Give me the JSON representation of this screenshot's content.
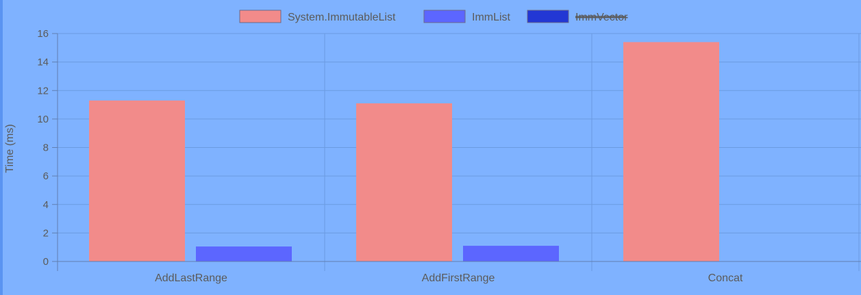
{
  "chart_data": {
    "type": "bar",
    "title": "",
    "xlabel": "",
    "ylabel": "Time (ms)",
    "ylim": [
      0,
      16
    ],
    "yticks": [
      0,
      2,
      4,
      6,
      8,
      10,
      12,
      14,
      16
    ],
    "categories": [
      "AddLastRange",
      "AddFirstRange",
      "Concat"
    ],
    "series": [
      {
        "name": "System.ImmutableList",
        "color": "#f28b8a",
        "values": [
          11.3,
          11.1,
          15.4
        ],
        "hidden": false
      },
      {
        "name": "ImmList",
        "color": "#5c66ff",
        "values": [
          1.05,
          1.1,
          null
        ],
        "hidden": false
      },
      {
        "name": "ImmVector",
        "color": "#2337d4",
        "values": [
          null,
          null,
          null
        ],
        "hidden": true
      }
    ],
    "legend": "top-center",
    "grid": true
  },
  "colors": {
    "background": "#7fb2ff",
    "grid": "#6b9be0",
    "axis": "#607fb0",
    "text": "#5b5b5b"
  }
}
